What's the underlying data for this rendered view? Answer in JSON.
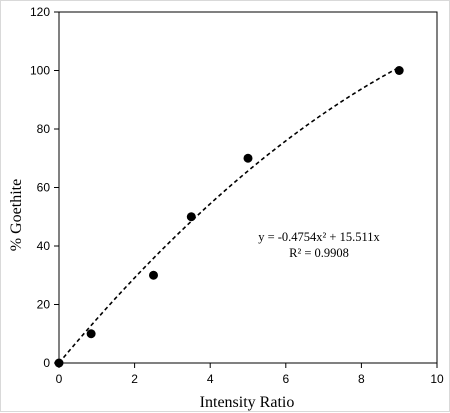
{
  "chart_data": {
    "type": "scatter",
    "title": "",
    "xlabel": "Intensity Ratio",
    "ylabel": "% Goethite",
    "xlim": [
      0,
      10
    ],
    "ylim": [
      0,
      120
    ],
    "x_ticks": [
      0,
      2,
      4,
      6,
      8,
      10
    ],
    "y_ticks": [
      0,
      20,
      40,
      60,
      80,
      100,
      120
    ],
    "x_tick_labels": [
      "0",
      "2",
      "4",
      "6",
      "8",
      "10"
    ],
    "y_tick_labels": [
      "0",
      "20",
      "40",
      "60",
      "80",
      "100",
      "120"
    ],
    "grid": false,
    "legend": "none",
    "points": [
      {
        "x": 0,
        "y": 0
      },
      {
        "x": 0.85,
        "y": 10
      },
      {
        "x": 2.5,
        "y": 30
      },
      {
        "x": 3.5,
        "y": 50
      },
      {
        "x": 5.0,
        "y": 70
      },
      {
        "x": 9.0,
        "y": 100
      }
    ],
    "trendline": {
      "type": "polynomial",
      "coefficients": {
        "a2": -0.4754,
        "a1": 15.511,
        "a0": 0
      },
      "x_range": [
        0,
        9.0
      ],
      "style": "dashed"
    },
    "annotations": {
      "equation": "y = -0.4754x² + 15.511x",
      "r_squared": "R² = 0.9908"
    },
    "colors": {
      "marker": "#000000",
      "line": "#000000",
      "axis": "#000000"
    }
  }
}
